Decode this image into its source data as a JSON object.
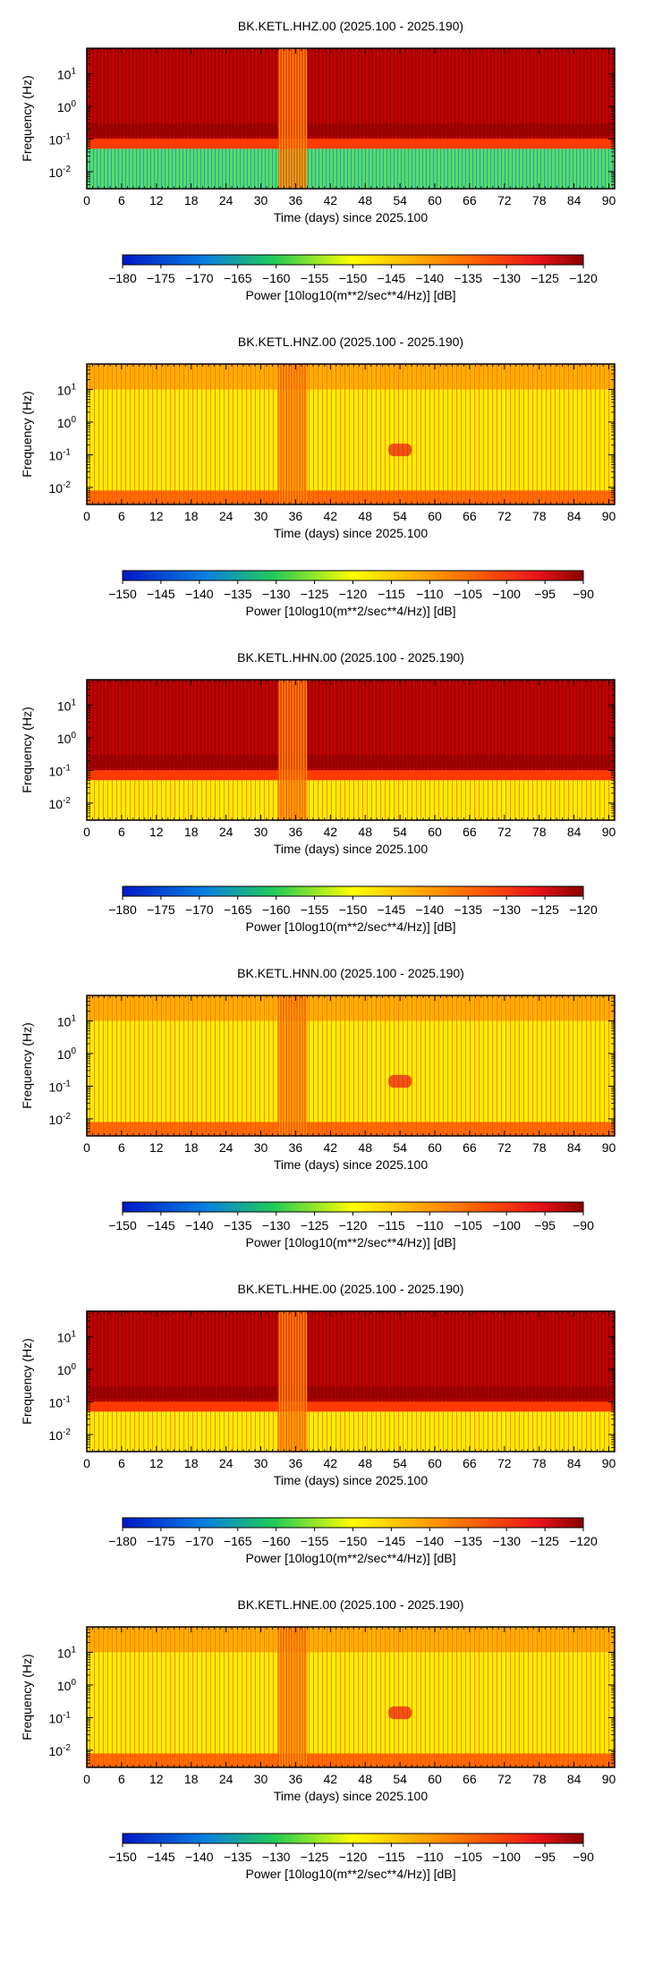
{
  "chart_data": [
    {
      "type": "heatmap",
      "title": "BK.KETL.HHZ.00 (2025.100 - 2025.190)",
      "xlabel": "Time (days) since 2025.100",
      "ylabel": "Frequency (Hz)",
      "xlim": [
        0,
        91
      ],
      "x_ticks": [
        "0",
        "6",
        "12",
        "18",
        "24",
        "30",
        "36",
        "42",
        "48",
        "54",
        "60",
        "66",
        "72",
        "78",
        "84",
        "90"
      ],
      "y_scale": "log",
      "ylim": [
        0.003,
        60
      ],
      "y_ticks": [
        {
          "label": "10",
          "exp": "1"
        },
        {
          "label": "10",
          "exp": "0"
        },
        {
          "label": "10",
          "exp": "-1"
        },
        {
          "label": "10",
          "exp": "-2"
        }
      ],
      "colorbar": {
        "label": "Power [10log10(m**2/sec**4/Hz)] [dB]",
        "ticks": [
          "−180",
          "−175",
          "−170",
          "−165",
          "−160",
          "−155",
          "−150",
          "−145",
          "−140",
          "−135",
          "−130",
          "−125",
          "−120"
        ],
        "range": [
          -180,
          -120
        ]
      }
    },
    {
      "type": "heatmap",
      "title": "BK.KETL.HNZ.00 (2025.100 - 2025.190)",
      "xlabel": "Time (days) since 2025.100",
      "ylabel": "Frequency (Hz)",
      "xlim": [
        0,
        91
      ],
      "x_ticks": [
        "0",
        "6",
        "12",
        "18",
        "24",
        "30",
        "36",
        "42",
        "48",
        "54",
        "60",
        "66",
        "72",
        "78",
        "84",
        "90"
      ],
      "y_scale": "log",
      "ylim": [
        0.003,
        60
      ],
      "y_ticks": [
        {
          "label": "10",
          "exp": "1"
        },
        {
          "label": "10",
          "exp": "0"
        },
        {
          "label": "10",
          "exp": "-1"
        },
        {
          "label": "10",
          "exp": "-2"
        }
      ],
      "colorbar": {
        "label": "Power [10log10(m**2/sec**4/Hz)] [dB]",
        "ticks": [
          "−150",
          "−145",
          "−140",
          "−135",
          "−130",
          "−125",
          "−120",
          "−115",
          "−110",
          "−105",
          "−100",
          "−95",
          "−90"
        ],
        "range": [
          -150,
          -90
        ]
      }
    },
    {
      "type": "heatmap",
      "title": "BK.KETL.HHN.00 (2025.100 - 2025.190)",
      "xlabel": "Time (days) since 2025.100",
      "ylabel": "Frequency (Hz)",
      "xlim": [
        0,
        91
      ],
      "x_ticks": [
        "0",
        "6",
        "12",
        "18",
        "24",
        "30",
        "36",
        "42",
        "48",
        "54",
        "60",
        "66",
        "72",
        "78",
        "84",
        "90"
      ],
      "y_scale": "log",
      "ylim": [
        0.003,
        60
      ],
      "y_ticks": [
        {
          "label": "10",
          "exp": "1"
        },
        {
          "label": "10",
          "exp": "0"
        },
        {
          "label": "10",
          "exp": "-1"
        },
        {
          "label": "10",
          "exp": "-2"
        }
      ],
      "colorbar": {
        "label": "Power [10log10(m**2/sec**4/Hz)] [dB]",
        "ticks": [
          "−180",
          "−175",
          "−170",
          "−165",
          "−160",
          "−155",
          "−150",
          "−145",
          "−140",
          "−135",
          "−130",
          "−125",
          "−120"
        ],
        "range": [
          -180,
          -120
        ]
      }
    },
    {
      "type": "heatmap",
      "title": "BK.KETL.HNN.00 (2025.100 - 2025.190)",
      "xlabel": "Time (days) since 2025.100",
      "ylabel": "Frequency (Hz)",
      "xlim": [
        0,
        91
      ],
      "x_ticks": [
        "0",
        "6",
        "12",
        "18",
        "24",
        "30",
        "36",
        "42",
        "48",
        "54",
        "60",
        "66",
        "72",
        "78",
        "84",
        "90"
      ],
      "y_scale": "log",
      "ylim": [
        0.003,
        60
      ],
      "y_ticks": [
        {
          "label": "10",
          "exp": "1"
        },
        {
          "label": "10",
          "exp": "0"
        },
        {
          "label": "10",
          "exp": "-1"
        },
        {
          "label": "10",
          "exp": "-2"
        }
      ],
      "colorbar": {
        "label": "Power [10log10(m**2/sec**4/Hz)] [dB]",
        "ticks": [
          "−150",
          "−145",
          "−140",
          "−135",
          "−130",
          "−125",
          "−120",
          "−115",
          "−110",
          "−105",
          "−100",
          "−95",
          "−90"
        ],
        "range": [
          -150,
          -90
        ]
      }
    },
    {
      "type": "heatmap",
      "title": "BK.KETL.HHE.00 (2025.100 - 2025.190)",
      "xlabel": "Time (days) since 2025.100",
      "ylabel": "Frequency (Hz)",
      "xlim": [
        0,
        91
      ],
      "x_ticks": [
        "0",
        "6",
        "12",
        "18",
        "24",
        "30",
        "36",
        "42",
        "48",
        "54",
        "60",
        "66",
        "72",
        "78",
        "84",
        "90"
      ],
      "y_scale": "log",
      "ylim": [
        0.003,
        60
      ],
      "y_ticks": [
        {
          "label": "10",
          "exp": "1"
        },
        {
          "label": "10",
          "exp": "0"
        },
        {
          "label": "10",
          "exp": "-1"
        },
        {
          "label": "10",
          "exp": "-2"
        }
      ],
      "colorbar": {
        "label": "Power [10log10(m**2/sec**4/Hz)] [dB]",
        "ticks": [
          "−180",
          "−175",
          "−170",
          "−165",
          "−160",
          "−155",
          "−150",
          "−145",
          "−140",
          "−135",
          "−130",
          "−125",
          "−120"
        ],
        "range": [
          -180,
          -120
        ]
      }
    },
    {
      "type": "heatmap",
      "title": "BK.KETL.HNE.00 (2025.100 - 2025.190)",
      "xlabel": "Time (days) since 2025.100",
      "ylabel": "Frequency (Hz)",
      "xlim": [
        0,
        91
      ],
      "x_ticks": [
        "0",
        "6",
        "12",
        "18",
        "24",
        "30",
        "36",
        "42",
        "48",
        "54",
        "60",
        "66",
        "72",
        "78",
        "84",
        "90"
      ],
      "y_scale": "log",
      "ylim": [
        0.003,
        60
      ],
      "y_ticks": [
        {
          "label": "10",
          "exp": "1"
        },
        {
          "label": "10",
          "exp": "0"
        },
        {
          "label": "10",
          "exp": "-1"
        },
        {
          "label": "10",
          "exp": "-2"
        }
      ],
      "colorbar": {
        "label": "Power [10log10(m**2/sec**4/Hz)] [dB]",
        "ticks": [
          "−150",
          "−145",
          "−140",
          "−135",
          "−130",
          "−125",
          "−120",
          "−115",
          "−110",
          "−105",
          "−100",
          "−95",
          "−90"
        ],
        "range": [
          -150,
          -90
        ]
      }
    }
  ],
  "colors": {
    "dark_red": "#8b0000",
    "red": "#e8141a",
    "yellow": "#ffff00",
    "green": "#22cc55",
    "blue": "#0018c8",
    "frame": "#000000"
  }
}
